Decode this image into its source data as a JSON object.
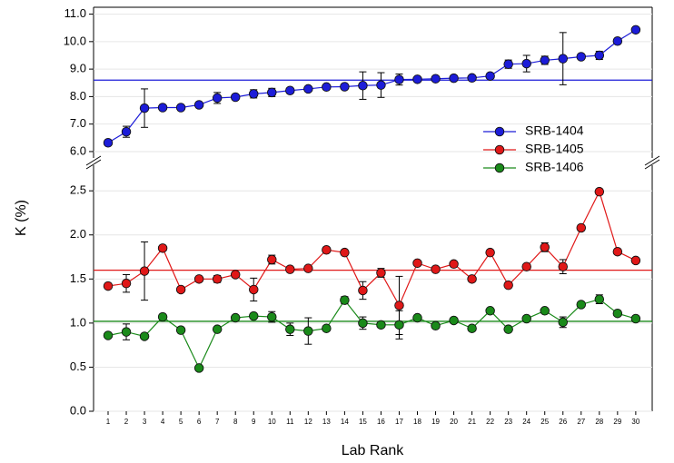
{
  "chart_data": [
    {
      "type": "line",
      "ylim": [
        5.8,
        11.25
      ],
      "yticks": [
        {
          "value": 6,
          "label": "6.0"
        },
        {
          "value": 7,
          "label": "7.0"
        },
        {
          "value": 8,
          "label": "8.0"
        },
        {
          "value": 9,
          "label": "9.0"
        },
        {
          "value": 10,
          "label": "10.0"
        },
        {
          "value": 11,
          "label": "11.0"
        }
      ],
      "grid": true,
      "series": [
        {
          "name": "SRB-1404",
          "color": "#1c1cd8",
          "mean": 8.6,
          "values": [
            6.32,
            6.72,
            7.58,
            7.6,
            7.6,
            7.7,
            7.95,
            7.98,
            8.1,
            8.15,
            8.22,
            8.28,
            8.35,
            8.36,
            8.4,
            8.42,
            8.62,
            8.63,
            8.65,
            8.67,
            8.68,
            8.75,
            9.18,
            9.2,
            9.32,
            9.38,
            9.45,
            9.5,
            10.02,
            10.43
          ],
          "errors": [
            0.05,
            0.2,
            0.7,
            0.05,
            0.05,
            0.05,
            0.2,
            0.05,
            0.15,
            0.15,
            0.05,
            0.05,
            0.05,
            0.1,
            0.5,
            0.45,
            0.2,
            0.05,
            0.05,
            0.05,
            0.05,
            0.05,
            0.15,
            0.3,
            0.15,
            0.95,
            0.05,
            0.15,
            0.05,
            0.05
          ]
        }
      ]
    },
    {
      "type": "line",
      "ylim": [
        0,
        2.78
      ],
      "yticks": [
        {
          "value": 0,
          "label": "0.0"
        },
        0.5,
        {
          "value": 1,
          "label": "1.0"
        },
        1.5,
        {
          "value": 2,
          "label": "2.0"
        },
        2.5
      ],
      "grid": true,
      "ylabel": "K (%)",
      "xlabel": "Lab Rank",
      "categories": [
        "1",
        "2",
        "3",
        "4",
        "5",
        "6",
        "7",
        "8",
        "9",
        "10",
        "11",
        "12",
        "13",
        "14",
        "15",
        "16",
        "17",
        "18",
        "19",
        "20",
        "21",
        "22",
        "23",
        "24",
        "25",
        "26",
        "27",
        "28",
        "29",
        "30"
      ],
      "series": [
        {
          "name": "SRB-1405",
          "color": "#e01818",
          "mean": 1.6,
          "values": [
            1.42,
            1.45,
            1.59,
            1.85,
            1.38,
            1.5,
            1.5,
            1.55,
            1.38,
            1.72,
            1.61,
            1.62,
            1.83,
            1.8,
            1.37,
            1.57,
            1.2,
            1.68,
            1.61,
            1.67,
            1.5,
            1.8,
            1.43,
            1.64,
            1.86,
            1.64,
            2.08,
            2.49,
            1.81,
            1.71
          ],
          "errors": [
            0.03,
            0.1,
            0.33,
            0.03,
            0.02,
            0.02,
            0.04,
            0.03,
            0.13,
            0.05,
            0.02,
            0.02,
            0.02,
            0.02,
            0.1,
            0.05,
            0.33,
            0.02,
            0.02,
            0.02,
            0.02,
            0.02,
            0.02,
            0.02,
            0.05,
            0.08,
            0.02,
            0.03,
            0.02,
            0.02
          ]
        },
        {
          "name": "SRB-1406",
          "color": "#1a8a1a",
          "mean": 1.02,
          "values": [
            0.86,
            0.9,
            0.85,
            1.07,
            0.92,
            0.49,
            0.93,
            1.06,
            1.08,
            1.07,
            0.93,
            0.91,
            0.94,
            1.26,
            1.0,
            0.98,
            0.98,
            1.06,
            0.97,
            1.03,
            0.94,
            1.14,
            0.93,
            1.05,
            1.14,
            1.01,
            1.21,
            1.27,
            1.11,
            1.05
          ],
          "errors": [
            0.02,
            0.09,
            0.02,
            0.02,
            0.02,
            0.02,
            0.02,
            0.02,
            0.02,
            0.06,
            0.07,
            0.15,
            0.02,
            0.04,
            0.07,
            0.02,
            0.16,
            0.02,
            0.02,
            0.02,
            0.02,
            0.02,
            0.02,
            0.02,
            0.02,
            0.06,
            0.02,
            0.05,
            0.02,
            0.02
          ]
        }
      ]
    }
  ]
}
